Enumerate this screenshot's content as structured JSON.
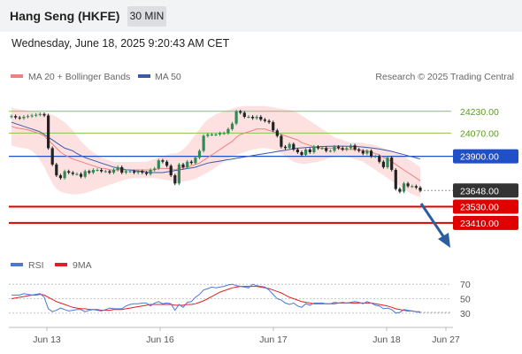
{
  "header": {
    "title": "Hang Seng (HKFE)",
    "interval": "30 MIN"
  },
  "datetime": "Wednesday, June 18, 2025 9:20:43 AM CET",
  "legend": {
    "ma20_label": "MA 20 + Bollinger Bands",
    "ma50_label": "MA 50",
    "credit": "Research © 2025 Trading Central"
  },
  "rsi_legend": {
    "rsi_label": "RSI",
    "ma_label": "9MA"
  },
  "colors": {
    "up": "#2e8b57",
    "down": "#222222",
    "ma20": "#f08080",
    "band": "#fddcdc",
    "ma50": "#3a5aa8",
    "resistance": "#8bc34a",
    "pivot": "#2050c8",
    "support": "#e00000",
    "last": "#333333",
    "arrow": "#2a5ea0",
    "rsi": "#4a78d8",
    "rsi_ma": "#e02020"
  },
  "chart_data": {
    "type": "candlestick",
    "x_ticks": [
      "Jun 13",
      "Jun 16",
      "Jun 17",
      "Jun 18",
      "Jun 27"
    ],
    "ylim": [
      23260,
      24320
    ],
    "levels": [
      {
        "name": "resistance-2",
        "value": 24230,
        "label": "24230.00",
        "style": "resistance"
      },
      {
        "name": "resistance-1",
        "value": 24070,
        "label": "24070.00",
        "style": "resistance"
      },
      {
        "name": "pivot",
        "value": 23900,
        "label": "23900.00",
        "style": "pivot"
      },
      {
        "name": "last-price",
        "value": 23648,
        "label": "23648.00",
        "style": "last"
      },
      {
        "name": "support-1",
        "value": 23530,
        "label": "23530.00",
        "style": "support"
      },
      {
        "name": "support-2",
        "value": 23410,
        "label": "23410.00",
        "style": "support"
      }
    ],
    "closes": [
      24195,
      24185,
      24180,
      24190,
      24195,
      24200,
      24205,
      24210,
      24200,
      23960,
      23840,
      23760,
      23740,
      23790,
      23780,
      23770,
      23770,
      23750,
      23790,
      23780,
      23800,
      23800,
      23790,
      23790,
      23780,
      23800,
      23820,
      23780,
      23790,
      23790,
      23780,
      23790,
      23780,
      23770,
      23800,
      23810,
      23870,
      23860,
      23830,
      23760,
      23700,
      23840,
      23820,
      23860,
      23850,
      23890,
      23940,
      24050,
      24060,
      24060,
      24060,
      24070,
      24070,
      24100,
      24140,
      24230,
      24220,
      24190,
      24190,
      24180,
      24190,
      24170,
      24160,
      24150,
      24090,
      24050,
      23970,
      23960,
      23990,
      23950,
      23930,
      23910,
      23950,
      23930,
      23970,
      23960,
      23960,
      23940,
      23940,
      23970,
      23960,
      23950,
      23960,
      23980,
      23950,
      23940,
      23920,
      23940,
      23900,
      23900,
      23860,
      23820,
      23890,
      23800,
      23660,
      23640,
      23700,
      23680,
      23680,
      23670,
      23648
    ],
    "ma20": [
      24120,
      24110,
      24105,
      24100,
      24095,
      24085,
      24075,
      24065,
      24050,
      24020,
      23990,
      23960,
      23930,
      23910,
      23895,
      23880,
      23870,
      23860,
      23850,
      23840,
      23830,
      23820,
      23810,
      23810,
      23800,
      23800,
      23800,
      23800,
      23800,
      23800,
      23800,
      23800,
      23800,
      23800,
      23800,
      23800,
      23810,
      23810,
      23810,
      23810,
      23800,
      23810,
      23820,
      23820,
      23830,
      23840,
      23850,
      23870,
      23890,
      23910,
      23930,
      23950,
      23970,
      23990,
      24010,
      24040,
      24060,
      24070,
      24080,
      24090,
      24100,
      24100,
      24100,
      24090,
      24080,
      24070,
      24060,
      24050,
      24040,
      24030,
      24020,
      24000,
      23990,
      23980,
      23970,
      23960,
      23960,
      23960,
      23960,
      23960,
      23960,
      23950,
      23950,
      23950,
      23950,
      23950,
      23940,
      23940,
      23930,
      23920,
      23910,
      23890,
      23880,
      23860,
      23840,
      23820,
      23800,
      23780,
      23760,
      23740,
      23720
    ],
    "bb_upper": [
      24260,
      24250,
      24245,
      24240,
      24235,
      24230,
      24228,
      24225,
      24220,
      24215,
      24205,
      24190,
      24170,
      24150,
      24120,
      24090,
      24050,
      24010,
      23980,
      23950,
      23930,
      23910,
      23890,
      23880,
      23870,
      23860,
      23860,
      23860,
      23860,
      23860,
      23860,
      23860,
      23860,
      23860,
      23870,
      23880,
      23890,
      23900,
      23910,
      23920,
      23920,
      23930,
      23950,
      23980,
      24020,
      24060,
      24100,
      24140,
      24170,
      24190,
      24210,
      24220,
      24230,
      24240,
      24250,
      24260,
      24265,
      24270,
      24270,
      24270,
      24270,
      24270,
      24270,
      24265,
      24260,
      24255,
      24250,
      24245,
      24240,
      24230,
      24220,
      24200,
      24180,
      24160,
      24140,
      24120,
      24100,
      24080,
      24060,
      24040,
      24030,
      24020,
      24010,
      24000,
      24000,
      24000,
      24000,
      23990,
      23990,
      23980,
      23970,
      23960,
      23950,
      23940,
      23930,
      23920,
      23900,
      23880,
      23860,
      23840,
      23820
    ],
    "bb_lower": [
      23980,
      23970,
      23965,
      23960,
      23955,
      23940,
      23910,
      23870,
      23820,
      23760,
      23700,
      23660,
      23640,
      23630,
      23625,
      23620,
      23620,
      23625,
      23630,
      23640,
      23650,
      23660,
      23670,
      23680,
      23690,
      23700,
      23710,
      23720,
      23730,
      23735,
      23740,
      23740,
      23740,
      23740,
      23740,
      23740,
      23735,
      23730,
      23725,
      23720,
      23715,
      23715,
      23715,
      23720,
      23725,
      23735,
      23750,
      23765,
      23780,
      23800,
      23820,
      23840,
      23860,
      23880,
      23900,
      23910,
      23920,
      23930,
      23940,
      23950,
      23955,
      23960,
      23960,
      23955,
      23950,
      23940,
      23920,
      23900,
      23880,
      23860,
      23850,
      23845,
      23845,
      23850,
      23855,
      23860,
      23870,
      23880,
      23890,
      23895,
      23900,
      23900,
      23895,
      23890,
      23880,
      23870,
      23860,
      23840,
      23820,
      23800,
      23780,
      23760,
      23740,
      23720,
      23700,
      23680,
      23660,
      23640,
      23620,
      23610,
      23600
    ],
    "ma50": [
      24150,
      24140,
      24130,
      24120,
      24110,
      24100,
      24090,
      24080,
      24060,
      24040,
      24020,
      24000,
      23980,
      23960,
      23950,
      23940,
      23920,
      23905,
      23890,
      23880,
      23870,
      23860,
      23850,
      23840,
      23830,
      23820,
      23815,
      23810,
      23800,
      23800,
      23795,
      23790,
      23790,
      23785,
      23780,
      23780,
      23780,
      23780,
      23785,
      23790,
      23795,
      23800,
      23805,
      23810,
      23815,
      23820,
      23830,
      23840,
      23850,
      23855,
      23860,
      23865,
      23870,
      23875,
      23880,
      23885,
      23890,
      23895,
      23900,
      23905,
      23910,
      23915,
      23920,
      23925,
      23930,
      23935,
      23940,
      23945,
      23950,
      23955,
      23960,
      23962,
      23964,
      23966,
      23968,
      23970,
      23972,
      23973,
      23974,
      23975,
      23975,
      23975,
      23974,
      23973,
      23972,
      23970,
      23968,
      23965,
      23962,
      23958,
      23953,
      23948,
      23942,
      23936,
      23928,
      23920,
      23912,
      23904,
      23896,
      23888,
      23880
    ],
    "rsi_ticks": [
      70,
      50,
      30
    ],
    "rsi": [
      55,
      55,
      55,
      57,
      56,
      55,
      56,
      57,
      52,
      36,
      32,
      34,
      37,
      35,
      33,
      34,
      35,
      35,
      32,
      34,
      35,
      34,
      33,
      35,
      37,
      36,
      36,
      36,
      40,
      42,
      43,
      43,
      44,
      44,
      40,
      44,
      46,
      43,
      44,
      43,
      34,
      42,
      38,
      45,
      46,
      52,
      56,
      62,
      64,
      66,
      65,
      66,
      67,
      69,
      70,
      68,
      67,
      66,
      65,
      70,
      68,
      67,
      66,
      62,
      56,
      50,
      48,
      44,
      42,
      44,
      40,
      38,
      43,
      41,
      44,
      44,
      44,
      43,
      43,
      45,
      44,
      45,
      44,
      45,
      46,
      45,
      43,
      46,
      44,
      41,
      40,
      36,
      37,
      35,
      30,
      31,
      35,
      34,
      33,
      32,
      31
    ],
    "rsi_ma": [
      50,
      51,
      52,
      53,
      54,
      55,
      55,
      56,
      55,
      52,
      49,
      46,
      44,
      42,
      40,
      38,
      37,
      36,
      36,
      35,
      35,
      35,
      34,
      34,
      34,
      35,
      35,
      35,
      36,
      37,
      38,
      39,
      40,
      41,
      42,
      42,
      42,
      42,
      42,
      42,
      41,
      41,
      41,
      42,
      42,
      43,
      45,
      47,
      50,
      53,
      56,
      59,
      61,
      63,
      65,
      66,
      67,
      67,
      67,
      67,
      67,
      66,
      65,
      64,
      62,
      60,
      58,
      55,
      52,
      50,
      48,
      46,
      45,
      44,
      43,
      43,
      43,
      43,
      43,
      43,
      44,
      44,
      44,
      44,
      44,
      44,
      44,
      44,
      44,
      43,
      42,
      41,
      40,
      38,
      36,
      35,
      34,
      33,
      33,
      32,
      32
    ]
  }
}
